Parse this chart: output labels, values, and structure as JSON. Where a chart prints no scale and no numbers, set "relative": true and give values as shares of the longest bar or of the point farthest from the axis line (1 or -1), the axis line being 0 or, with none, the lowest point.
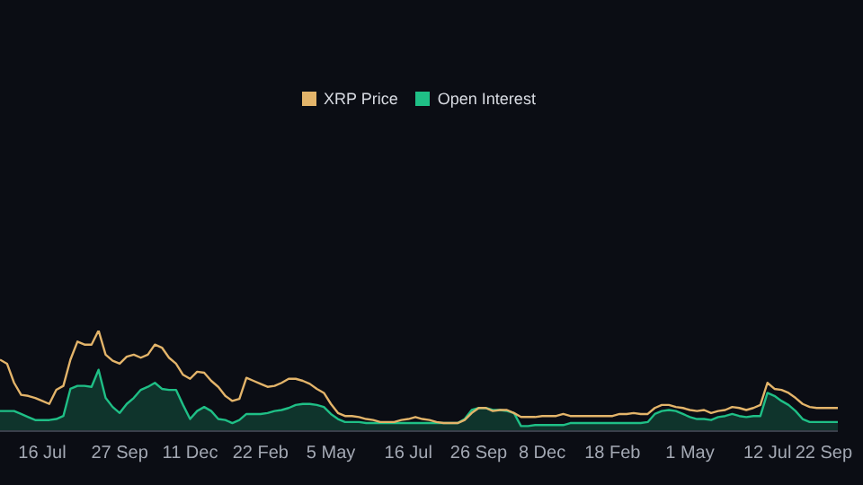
{
  "chart_data": {
    "type": "line",
    "relative": true,
    "legend": "top",
    "categories": [
      null,
      null,
      null,
      null,
      null,
      null,
      "16 Jul",
      null,
      null,
      null,
      null,
      null,
      null,
      null,
      null,
      null,
      null,
      "27 Sep",
      null,
      null,
      null,
      null,
      null,
      null,
      null,
      null,
      null,
      "11 Dec",
      null,
      null,
      null,
      null,
      null,
      null,
      null,
      null,
      null,
      "22 Feb",
      null,
      null,
      null,
      null,
      null,
      null,
      null,
      null,
      null,
      "5 May",
      null,
      null,
      null,
      null,
      null,
      null,
      null,
      null,
      null,
      null,
      "16 Jul",
      null,
      null,
      null,
      null,
      null,
      null,
      null,
      null,
      null,
      "26 Sep",
      null,
      null,
      null,
      null,
      null,
      null,
      null,
      null,
      "8 Dec",
      null,
      null,
      null,
      null,
      null,
      null,
      null,
      null,
      null,
      "18 Feb",
      null,
      null,
      null,
      null,
      null,
      null,
      null,
      null,
      null,
      null,
      "1 May",
      null,
      null,
      null,
      null,
      null,
      null,
      null,
      null,
      null,
      null,
      "12 Jul",
      null,
      null,
      null,
      null,
      null,
      null,
      null,
      "22 Sep",
      null,
      null
    ],
    "series": [
      {
        "name": "XRP Price",
        "color": "#e3b46a",
        "values": [
          0.71,
          0.67,
          0.48,
          0.36,
          0.35,
          0.33,
          0.3,
          0.27,
          0.41,
          0.45,
          0.71,
          0.89,
          0.86,
          0.86,
          1.0,
          0.76,
          0.7,
          0.67,
          0.74,
          0.76,
          0.73,
          0.76,
          0.86,
          0.83,
          0.73,
          0.67,
          0.56,
          0.52,
          0.59,
          0.58,
          0.5,
          0.44,
          0.35,
          0.3,
          0.32,
          0.53,
          0.5,
          0.47,
          0.44,
          0.45,
          0.48,
          0.52,
          0.52,
          0.5,
          0.47,
          0.42,
          0.38,
          0.27,
          0.18,
          0.15,
          0.15,
          0.14,
          0.12,
          0.11,
          0.09,
          0.09,
          0.09,
          0.11,
          0.12,
          0.14,
          0.12,
          0.11,
          0.09,
          0.08,
          0.08,
          0.08,
          0.11,
          0.18,
          0.23,
          0.23,
          0.2,
          0.21,
          0.21,
          0.18,
          0.14,
          0.14,
          0.14,
          0.15,
          0.15,
          0.15,
          0.17,
          0.15,
          0.15,
          0.15,
          0.15,
          0.15,
          0.15,
          0.15,
          0.17,
          0.17,
          0.18,
          0.17,
          0.17,
          0.23,
          0.26,
          0.26,
          0.24,
          0.23,
          0.21,
          0.2,
          0.21,
          0.18,
          0.2,
          0.21,
          0.24,
          0.23,
          0.21,
          0.23,
          0.26,
          0.48,
          0.42,
          0.41,
          0.38,
          0.33,
          0.27,
          0.24,
          0.23,
          0.23,
          0.23,
          0.23
        ]
      },
      {
        "name": "Open Interest",
        "type": "area",
        "color": "#1fbf86",
        "values": [
          0.2,
          0.2,
          0.2,
          0.17,
          0.14,
          0.11,
          0.11,
          0.11,
          0.12,
          0.15,
          0.42,
          0.45,
          0.45,
          0.44,
          0.61,
          0.33,
          0.24,
          0.18,
          0.27,
          0.33,
          0.41,
          0.44,
          0.48,
          0.42,
          0.41,
          0.41,
          0.26,
          0.12,
          0.2,
          0.24,
          0.2,
          0.12,
          0.11,
          0.08,
          0.11,
          0.17,
          0.17,
          0.17,
          0.18,
          0.2,
          0.21,
          0.23,
          0.26,
          0.27,
          0.27,
          0.26,
          0.24,
          0.17,
          0.12,
          0.09,
          0.09,
          0.09,
          0.08,
          0.08,
          0.08,
          0.08,
          0.08,
          0.08,
          0.08,
          0.08,
          0.08,
          0.08,
          0.08,
          0.08,
          0.08,
          0.08,
          0.12,
          0.21,
          0.23,
          0.23,
          0.21,
          0.21,
          0.2,
          0.18,
          0.05,
          0.05,
          0.06,
          0.06,
          0.06,
          0.06,
          0.06,
          0.08,
          0.08,
          0.08,
          0.08,
          0.08,
          0.08,
          0.08,
          0.08,
          0.08,
          0.08,
          0.08,
          0.09,
          0.17,
          0.2,
          0.21,
          0.2,
          0.17,
          0.14,
          0.12,
          0.12,
          0.11,
          0.14,
          0.15,
          0.17,
          0.15,
          0.14,
          0.15,
          0.15,
          0.38,
          0.35,
          0.3,
          0.26,
          0.2,
          0.12,
          0.09,
          0.09,
          0.09,
          0.09,
          0.09
        ]
      }
    ]
  }
}
